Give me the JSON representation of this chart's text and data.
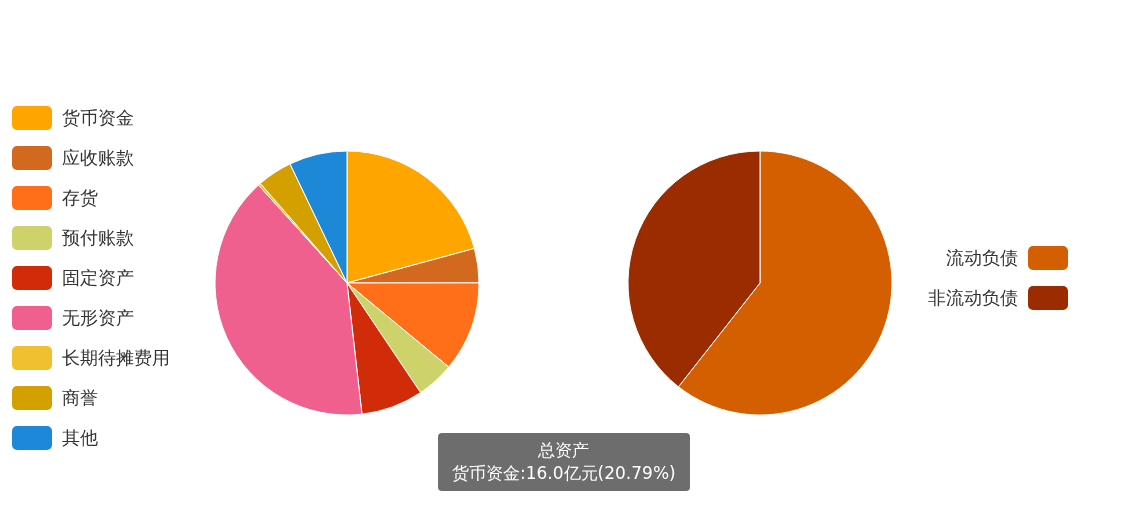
{
  "chart_data": [
    {
      "type": "pie",
      "categories": [
        "货币资金",
        "应收账款",
        "存货",
        "预付账款",
        "固定资产",
        "无形资产",
        "长期待摊费用",
        "商誉",
        "其他"
      ],
      "values": [
        20.79,
        4.2,
        11.0,
        4.6,
        7.6,
        40.11,
        0.3,
        4.3,
        7.1
      ],
      "colors": [
        "#ffa500",
        "#d2691e",
        "#ff6f1a",
        "#cdd36a",
        "#d02c0a",
        "#f0608e",
        "#f0c030",
        "#d4a000",
        "#1e88d8"
      ],
      "legend": "left",
      "annotations": [
        "总资产",
        "货币资金:16.0亿元(20.79%)"
      ]
    },
    {
      "type": "pie",
      "categories": [
        "流动负债",
        "非流动负债"
      ],
      "values": [
        60.6,
        39.4
      ],
      "colors": [
        "#d45f00",
        "#9a2c00"
      ],
      "legend": "right"
    }
  ]
}
